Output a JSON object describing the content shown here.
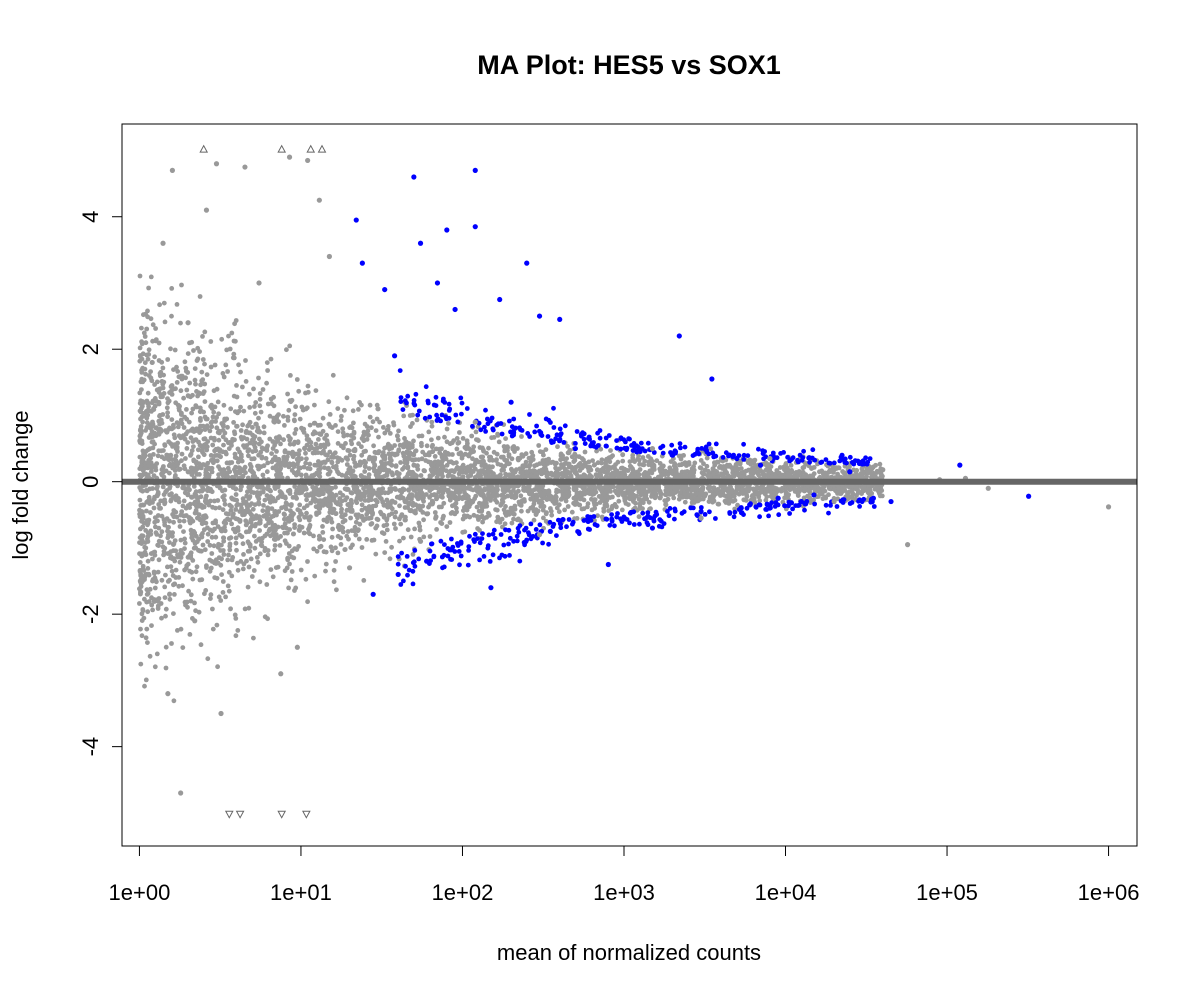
{
  "chart_data": {
    "type": "scatter",
    "title": "MA Plot: HES5 vs SOX1",
    "xlabel": "mean of normalized counts",
    "ylabel": "log fold change",
    "x_scale": "log10",
    "xlim": [
      0.78,
      1500000
    ],
    "ylim": [
      -5.5,
      5.4
    ],
    "x_ticks": [
      {
        "value": 1,
        "label": "1e+00"
      },
      {
        "value": 10,
        "label": "1e+01"
      },
      {
        "value": 100,
        "label": "1e+02"
      },
      {
        "value": 1000,
        "label": "1e+03"
      },
      {
        "value": 10000,
        "label": "1e+04"
      },
      {
        "value": 100000,
        "label": "1e+05"
      },
      {
        "value": 1000000,
        "label": "1e+06"
      }
    ],
    "y_ticks": [
      {
        "value": -4,
        "label": "-4"
      },
      {
        "value": -2,
        "label": "-2"
      },
      {
        "value": 0,
        "label": "0"
      },
      {
        "value": 2,
        "label": "2"
      },
      {
        "value": 4,
        "label": "4"
      }
    ],
    "reference_line": {
      "y": 0,
      "color": "#666666"
    },
    "colors": {
      "not_significant": "#999999",
      "significant": "#0000ff",
      "out_of_range": "#666666"
    },
    "series": [
      {
        "points": [
          [
            1.2,
            1.8
          ],
          [
            1.3,
            -1.8
          ],
          [
            1.4,
            3.6
          ],
          [
            1.5,
            -3.2
          ],
          [
            1.6,
            4.7
          ],
          [
            1.8,
            -4.7
          ],
          [
            2.0,
            2.4
          ],
          [
            2.2,
            -2.1
          ],
          [
            2.6,
            4.1
          ],
          [
            3.0,
            4.8
          ],
          [
            3.2,
            -3.5
          ],
          [
            4.5,
            4.75
          ],
          [
            5.5,
            3.0
          ],
          [
            7.5,
            -2.9
          ],
          [
            8.5,
            4.9
          ],
          [
            9.5,
            -2.5
          ],
          [
            11.0,
            4.85
          ],
          [
            13.0,
            4.25
          ],
          [
            15.0,
            3.4
          ],
          [
            20.0,
            -1.3
          ],
          [
            30.0,
            1.1
          ],
          [
            55.0,
            -0.9
          ],
          [
            120.0,
            0.9
          ],
          [
            300.0,
            -0.8
          ],
          [
            1500.0,
            0.5
          ],
          [
            3000.0,
            -0.55
          ],
          [
            8000.0,
            0.35
          ],
          [
            20000.0,
            -0.3
          ],
          [
            40000.0,
            0.18
          ],
          [
            57000.0,
            -0.95
          ],
          [
            90000.0,
            0.03
          ],
          [
            130000.0,
            0.05
          ],
          [
            180000.0,
            -0.1
          ],
          [
            1000000.0,
            -0.38
          ]
        ]
      },
      {
        "points": [
          [
            22,
            3.95
          ],
          [
            24,
            3.3
          ],
          [
            28,
            -1.7
          ],
          [
            33,
            2.9
          ],
          [
            38,
            1.9
          ],
          [
            40,
            -1.4
          ],
          [
            50,
            4.6
          ],
          [
            55,
            3.6
          ],
          [
            60,
            -1.2
          ],
          [
            70,
            3.0
          ],
          [
            80,
            3.8
          ],
          [
            90,
            2.6
          ],
          [
            120,
            4.7
          ],
          [
            120,
            3.85
          ],
          [
            150,
            -1.6
          ],
          [
            170,
            2.75
          ],
          [
            200,
            1.2
          ],
          [
            250,
            3.3
          ],
          [
            300,
            2.5
          ],
          [
            350,
            -0.75
          ],
          [
            400,
            2.45
          ],
          [
            500,
            0.5
          ],
          [
            600,
            -0.6
          ],
          [
            800,
            -1.25
          ],
          [
            1200,
            0.45
          ],
          [
            1500,
            -0.7
          ],
          [
            2000,
            0.4
          ],
          [
            2200,
            2.2
          ],
          [
            3000,
            -0.45
          ],
          [
            3500,
            1.55
          ],
          [
            5000,
            0.35
          ],
          [
            6000,
            -0.35
          ],
          [
            7000,
            0.25
          ],
          [
            9000,
            -0.25
          ],
          [
            12000,
            0.3
          ],
          [
            15000,
            -0.2
          ],
          [
            25000,
            0.15
          ],
          [
            35000,
            -0.25
          ],
          [
            45000,
            -0.3
          ],
          [
            120000,
            0.25
          ],
          [
            320000,
            -0.22
          ]
        ]
      },
      {
        "points": [
          [
            2.5,
            5.02,
            "up"
          ],
          [
            7.6,
            5.02,
            "up"
          ],
          [
            11.5,
            5.02,
            "up"
          ],
          [
            13.5,
            5.02,
            "up"
          ],
          [
            3.6,
            -5.02,
            "down"
          ],
          [
            4.2,
            -5.02,
            "down"
          ],
          [
            7.6,
            -5.02,
            "down"
          ],
          [
            10.8,
            -5.02,
            "down"
          ]
        ]
      }
    ]
  }
}
